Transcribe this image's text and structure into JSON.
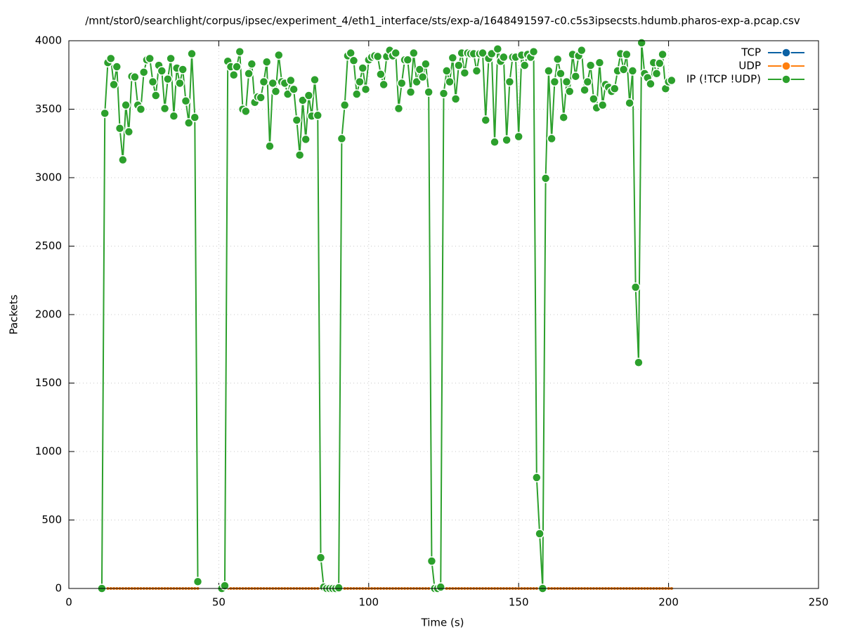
{
  "chart_data": {
    "type": "line",
    "title": "/mnt/stor0/searchlight/corpus/ipsec/experiment_4/eth1_interface/sts/exp-a/1648491597-c0.c5s3ipsecsts.hdumb.pharos-exp-a.pcap.csv",
    "x_label": "Time (s)",
    "y_label": "Packets",
    "xlim": [
      0,
      250
    ],
    "ylim": [
      0,
      4000
    ],
    "xticks": [
      0,
      50,
      100,
      150,
      200,
      250
    ],
    "yticks": [
      0,
      500,
      1000,
      1500,
      2000,
      2500,
      3000,
      3500,
      4000
    ],
    "grid": true,
    "legend": "top-right",
    "x": [
      11,
      12,
      13,
      14,
      15,
      16,
      17,
      18,
      19,
      20,
      21,
      22,
      23,
      24,
      25,
      26,
      27,
      28,
      29,
      30,
      31,
      32,
      33,
      34,
      35,
      36,
      37,
      38,
      39,
      40,
      41,
      42,
      43,
      44,
      45,
      46,
      47,
      48,
      49,
      50,
      51,
      52,
      53,
      54,
      55,
      56,
      57,
      58,
      59,
      60,
      61,
      62,
      63,
      64,
      65,
      66,
      67,
      68,
      69,
      70,
      71,
      72,
      73,
      74,
      75,
      76,
      77,
      78,
      79,
      80,
      81,
      82,
      83,
      84,
      85,
      86,
      87,
      88,
      89,
      90,
      91,
      92,
      93,
      94,
      95,
      96,
      97,
      98,
      99,
      100,
      101,
      102,
      103,
      104,
      105,
      106,
      107,
      108,
      109,
      110,
      111,
      112,
      113,
      114,
      115,
      116,
      117,
      118,
      119,
      120,
      121,
      122,
      123,
      124,
      125,
      126,
      127,
      128,
      129,
      130,
      131,
      132,
      133,
      134,
      135,
      136,
      137,
      138,
      139,
      140,
      141,
      142,
      143,
      144,
      145,
      146,
      147,
      148,
      149,
      150,
      151,
      152,
      153,
      154,
      155,
      156,
      157,
      158,
      159,
      160,
      161,
      162,
      163,
      164,
      165,
      166,
      167,
      168,
      169,
      170,
      171,
      172,
      173,
      174,
      175,
      176,
      177,
      178,
      179,
      180,
      181,
      182,
      183,
      184,
      185,
      186,
      187,
      188,
      189,
      190,
      191,
      192,
      193,
      194,
      195,
      196,
      197,
      198,
      199,
      200,
      201
    ],
    "series": [
      {
        "name": "TCP",
        "color": "#0b61a4",
        "values": [
          0,
          0,
          0,
          0,
          0,
          0,
          0,
          0,
          0,
          0,
          0,
          0,
          0,
          0,
          0,
          0,
          0,
          0,
          0,
          0,
          0,
          0,
          0,
          0,
          0,
          0,
          0,
          0,
          0,
          0,
          0,
          0,
          0,
          null,
          null,
          null,
          null,
          null,
          null,
          null,
          0,
          0,
          0,
          0,
          0,
          0,
          0,
          0,
          0,
          0,
          0,
          0,
          0,
          0,
          0,
          0,
          0,
          0,
          0,
          0,
          0,
          0,
          0,
          0,
          0,
          0,
          0,
          0,
          0,
          0,
          0,
          0,
          0,
          0,
          0,
          0,
          0,
          0,
          0,
          0,
          0,
          0,
          0,
          0,
          0,
          0,
          0,
          0,
          0,
          0,
          0,
          0,
          0,
          0,
          0,
          0,
          0,
          0,
          0,
          0,
          0,
          0,
          0,
          0,
          0,
          0,
          0,
          0,
          0,
          0,
          0,
          0,
          0,
          0,
          0,
          0,
          0,
          0,
          0,
          0,
          0,
          0,
          0,
          0,
          0,
          0,
          0,
          0,
          0,
          0,
          0,
          0,
          0,
          0,
          0,
          0,
          0,
          0,
          0,
          0,
          0,
          0,
          0,
          0,
          0,
          0,
          0,
          0,
          0,
          0,
          0,
          0,
          0,
          0,
          0,
          0,
          0,
          0,
          0,
          0,
          0,
          0,
          0,
          0,
          0,
          0,
          0,
          0,
          0,
          0,
          0,
          0,
          0,
          0,
          0,
          0,
          0,
          0,
          0,
          0,
          0,
          0,
          0,
          0,
          0,
          0,
          0,
          0,
          0,
          0,
          0
        ]
      },
      {
        "name": "UDP",
        "color": "#ff7f0e",
        "values": [
          0,
          0,
          0,
          0,
          0,
          0,
          0,
          0,
          0,
          0,
          0,
          0,
          0,
          0,
          0,
          0,
          0,
          0,
          0,
          0,
          0,
          0,
          0,
          0,
          0,
          0,
          0,
          0,
          0,
          0,
          0,
          0,
          0,
          null,
          null,
          null,
          null,
          null,
          null,
          null,
          0,
          0,
          0,
          0,
          0,
          0,
          0,
          0,
          0,
          0,
          0,
          0,
          0,
          0,
          0,
          0,
          0,
          0,
          0,
          0,
          0,
          0,
          0,
          0,
          0,
          0,
          0,
          0,
          0,
          0,
          0,
          0,
          0,
          0,
          0,
          0,
          0,
          0,
          0,
          0,
          0,
          0,
          0,
          0,
          0,
          0,
          0,
          0,
          0,
          0,
          0,
          0,
          0,
          0,
          0,
          0,
          0,
          0,
          0,
          0,
          0,
          0,
          0,
          0,
          0,
          0,
          0,
          0,
          0,
          0,
          0,
          0,
          0,
          0,
          0,
          0,
          0,
          0,
          0,
          0,
          0,
          0,
          0,
          0,
          0,
          0,
          0,
          0,
          0,
          0,
          0,
          0,
          0,
          0,
          0,
          0,
          0,
          0,
          0,
          0,
          0,
          0,
          0,
          0,
          0,
          0,
          0,
          0,
          0,
          0,
          0,
          0,
          0,
          0,
          0,
          0,
          0,
          0,
          0,
          0,
          0,
          0,
          0,
          0,
          0,
          0,
          0,
          0,
          0,
          0,
          0,
          0,
          0,
          0,
          0,
          0,
          0,
          0,
          0,
          0,
          0,
          0,
          0,
          0,
          0,
          0,
          0,
          0,
          0,
          0,
          0
        ]
      },
      {
        "name": "IP (!TCP  !UDP)",
        "color": "#2ca02c",
        "values": [
          0,
          3470,
          3840,
          3870,
          3680,
          3810,
          3360,
          3130,
          3530,
          3335,
          3740,
          3735,
          3530,
          3500,
          3770,
          3860,
          3870,
          3700,
          3600,
          3820,
          3780,
          3505,
          3720,
          3870,
          3450,
          3800,
          3690,
          3790,
          3560,
          3400,
          3905,
          3440,
          50,
          null,
          null,
          null,
          null,
          null,
          null,
          null,
          0,
          20,
          3850,
          3810,
          3750,
          3810,
          3920,
          3500,
          3485,
          3760,
          3830,
          3550,
          3590,
          3585,
          3700,
          3845,
          3230,
          3690,
          3630,
          3895,
          3700,
          3690,
          3610,
          3710,
          3645,
          3420,
          3165,
          3565,
          3280,
          3600,
          3450,
          3715,
          3455,
          225,
          10,
          0,
          0,
          0,
          0,
          5,
          3285,
          3530,
          3890,
          3910,
          3855,
          3610,
          3700,
          3800,
          3645,
          3860,
          3880,
          3890,
          3885,
          3755,
          3680,
          3885,
          3930,
          3890,
          3910,
          3505,
          3690,
          3860,
          3860,
          3625,
          3910,
          3700,
          3790,
          3735,
          3830,
          3625,
          200,
          0,
          0,
          10,
          3615,
          3780,
          3700,
          3875,
          3575,
          3820,
          3910,
          3765,
          3910,
          3905,
          3905,
          3780,
          3905,
          3910,
          3420,
          3870,
          3905,
          3260,
          3940,
          3850,
          3880,
          3275,
          3700,
          3880,
          3880,
          3300,
          3895,
          3820,
          3900,
          3880,
          3920,
          810,
          400,
          0,
          2995,
          3780,
          3285,
          3700,
          3865,
          3760,
          3440,
          3700,
          3630,
          3900,
          3740,
          3890,
          3930,
          3640,
          3700,
          3820,
          3575,
          3510,
          3840,
          3530,
          3680,
          3660,
          3630,
          3650,
          3780,
          3905,
          3790,
          3900,
          3545,
          3780,
          2200,
          1650,
          3985,
          3760,
          3730,
          3685,
          3840,
          3760,
          3835,
          3900,
          3650,
          3700,
          3710
        ]
      }
    ]
  }
}
